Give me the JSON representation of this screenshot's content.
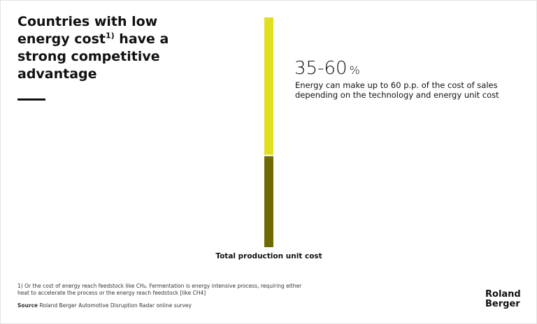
{
  "chart_data": {
    "type": "bar",
    "stacked": true,
    "title": "Countries with low energy cost",
    "title_sup": "1)",
    "title_end": "have a strong competitive advantage",
    "categories": [
      "Total production unit cost"
    ],
    "series": [
      {
        "color": "#706a00",
        "values": [
          40
        ]
      },
      {
        "color": "#e0e01e",
        "values": [
          60
        ]
      }
    ],
    "ylim": [
      0,
      100
    ],
    "annotation": {
      "value": "35-60",
      "unit": "%",
      "text": "Energy can make up to 60 p.p. of the cost of sales depending on the technology and energy unit cost"
    },
    "footnote": "1)  Or the cost of energy reach feedstock like CH₄. Fermentation is energy intensive process, requiring either heat to accelerate the process or the energy reach feedstock [like CH4]",
    "source_label": "Source",
    "source": "Roland Berger Automotive Disruption Radar online survey",
    "logo": [
      "Roland",
      "Berger"
    ]
  }
}
